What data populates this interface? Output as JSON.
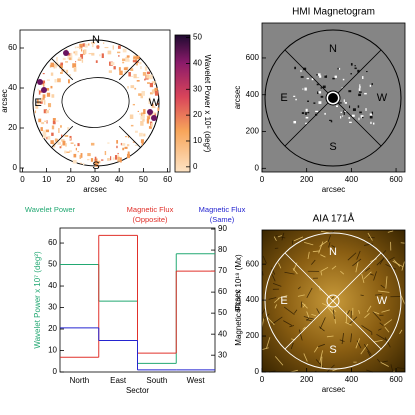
{
  "chart_data": [
    {
      "type": "image",
      "xlabel": "arcsec",
      "ylabel": "arcsec",
      "xlim": [
        -1,
        61
      ],
      "ylim": [
        -2,
        69
      ],
      "xticks": [
        0,
        10,
        20,
        30,
        40,
        50,
        60
      ],
      "yticks": [
        0,
        20,
        40,
        60
      ],
      "sector_labels": [
        "N",
        "E",
        "S",
        "W"
      ],
      "colorbar": {
        "label": "Wavelet Power x 10⁵ (deg²)",
        "lim": [
          -2,
          51
        ],
        "ticks": [
          0,
          10,
          20,
          30,
          40,
          50
        ]
      }
    },
    {
      "type": "image",
      "title": "HMI Magnetogram",
      "xlabel": "arcsec",
      "ylabel": "arcsec",
      "xlim": [
        0,
        640
      ],
      "ylim": [
        -20,
        790
      ],
      "xticks": [
        0,
        200,
        400,
        600
      ],
      "yticks": [
        0,
        200,
        400,
        600
      ],
      "sector_labels": [
        "N",
        "E",
        "S",
        "W"
      ]
    },
    {
      "type": "step",
      "xlabel": "Sector",
      "ylabel": "Wavelet Power x 10⁷ (deg²)",
      "y2label": "Magnetic Flux x 10¹⁸ (Mx)",
      "categories": [
        "North",
        "East",
        "South",
        "West"
      ],
      "ylim": [
        0,
        67
      ],
      "yticks": [
        0,
        10,
        20,
        30,
        40,
        50,
        60
      ],
      "y2lim": [
        22,
        90.5
      ],
      "y2ticks": [
        30,
        40,
        50,
        60,
        70,
        80,
        90
      ],
      "series": [
        {
          "name": "Wavelet Power",
          "color": "#22a872",
          "values": [
            50,
            33,
            4,
            55
          ]
        },
        {
          "name": "Magnetic Flux (Opposite)",
          "color": "#e0302a",
          "axis": "y2",
          "values": [
            29,
            87,
            31,
            70
          ]
        },
        {
          "name": "Magnetic Flux (Same)",
          "color": "#2424d0",
          "axis": "y2",
          "values": [
            43,
            37,
            23,
            23
          ]
        }
      ]
    },
    {
      "type": "image",
      "title": "AIA 171Å",
      "xlabel": "arcsec",
      "ylabel": "arcsec",
      "xlim": [
        0,
        640
      ],
      "ylim": [
        0,
        790
      ],
      "xticks": [
        0,
        200,
        400,
        600
      ],
      "yticks": [
        0,
        200,
        400,
        600
      ],
      "sector_labels": [
        "N",
        "E",
        "S",
        "W"
      ]
    }
  ]
}
